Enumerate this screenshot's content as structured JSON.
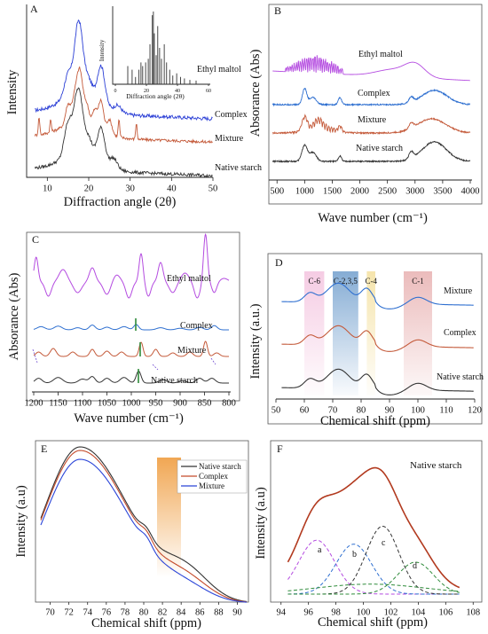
{
  "chart_data": [
    {
      "panel": "A",
      "type": "line",
      "xlabel": "Diffraction angle (2θ)",
      "ylabel": "Intensity",
      "xlim": [
        5,
        50
      ],
      "xticks": [
        10,
        20,
        30,
        40,
        50
      ],
      "series": [
        {
          "name": "Complex",
          "color": "#2b3fd6",
          "peaks": [
            [
              15,
              0.5
            ],
            [
              17.2,
              0.95
            ],
            [
              18,
              0.85
            ],
            [
              20,
              0.35
            ],
            [
              23,
              0.85
            ],
            [
              27,
              0.15
            ]
          ]
        },
        {
          "name": "Mixture",
          "color": "#c45a3a",
          "peaks": [
            [
              8,
              0.5
            ],
            [
              10.8,
              0.35
            ],
            [
              15,
              0.55
            ],
            [
              16.5,
              0.6
            ],
            [
              17.5,
              0.9
            ],
            [
              18.2,
              0.8
            ],
            [
              19.5,
              0.5
            ],
            [
              21.5,
              0.45
            ],
            [
              23,
              0.8
            ],
            [
              25,
              0.4
            ],
            [
              27.3,
              0.5
            ],
            [
              31.5,
              0.45
            ]
          ]
        },
        {
          "name": "Native starch",
          "color": "#333333",
          "peaks": [
            [
              15,
              0.8
            ],
            [
              17,
              0.95
            ],
            [
              18,
              0.9
            ],
            [
              20,
              0.4
            ],
            [
              23,
              0.85
            ],
            [
              26,
              0.25
            ]
          ]
        }
      ],
      "inset": {
        "series": "Ethyl maltol",
        "ylabel": "Intensity",
        "xlabel": "Diffraction angle (2θ)",
        "xlim": [
          0,
          60
        ],
        "xticks": [
          0,
          20,
          40,
          60
        ],
        "sticks": [
          [
            8,
            0.25
          ],
          [
            10.8,
            0.2
          ],
          [
            13,
            0.1
          ],
          [
            15.2,
            0.2
          ],
          [
            16.5,
            0.3
          ],
          [
            17.6,
            0.25
          ],
          [
            19.5,
            0.3
          ],
          [
            21.2,
            0.35
          ],
          [
            22.3,
            0.55
          ],
          [
            23.8,
            0.95
          ],
          [
            24.5,
            1.0
          ],
          [
            25.1,
            0.7
          ],
          [
            26.3,
            0.4
          ],
          [
            27.3,
            0.8
          ],
          [
            28.5,
            0.5
          ],
          [
            29.7,
            0.35
          ],
          [
            31.5,
            0.55
          ],
          [
            33,
            0.3
          ],
          [
            35,
            0.2
          ],
          [
            37,
            0.12
          ],
          [
            39.5,
            0.15
          ],
          [
            42,
            0.1
          ],
          [
            44.5,
            0.08
          ],
          [
            48,
            0.06
          ],
          [
            52,
            0.05
          ]
        ]
      }
    },
    {
      "panel": "B",
      "type": "line",
      "xlabel": "Wave number (cm⁻¹)",
      "ylabel": "Absorance (Abs)",
      "xlim": [
        400,
        4000
      ],
      "xticks": [
        500,
        1000,
        1500,
        2000,
        2500,
        3000,
        3500,
        4000
      ],
      "series": [
        {
          "name": "Ethyl maltol",
          "color": "#b44be0"
        },
        {
          "name": "Complex",
          "color": "#2e6fd0"
        },
        {
          "name": "Mixture",
          "color": "#c45a3a"
        },
        {
          "name": "Native starch",
          "color": "#333333"
        }
      ]
    },
    {
      "panel": "C",
      "type": "line",
      "xlabel": "Wave number (cm⁻¹)",
      "ylabel": "Absorance (Abs)",
      "xlim": [
        1200,
        800
      ],
      "xticks": [
        1200,
        1150,
        1100,
        1050,
        1000,
        950,
        900,
        850,
        800
      ],
      "series": [
        {
          "name": "Ethyl maltol",
          "color": "#b44be0"
        },
        {
          "name": "Complex",
          "color": "#2e6fd0"
        },
        {
          "name": "Mixture",
          "color": "#c45a3a"
        },
        {
          "name": "Native starch",
          "color": "#333333"
        }
      ]
    },
    {
      "panel": "D",
      "type": "line",
      "xlabel": "Chemical shift (ppm)",
      "ylabel": "Intensity (a.u.)",
      "xlim": [
        50,
        120
      ],
      "xticks": [
        50,
        60,
        70,
        80,
        90,
        100,
        110,
        120
      ],
      "regions": [
        {
          "label": "C-6",
          "from": 60,
          "to": 67,
          "color": "#f4c6e0"
        },
        {
          "label": "C-2,3,5",
          "from": 70,
          "to": 79,
          "color": "#8fb3d6"
        },
        {
          "label": "C-4",
          "from": 82,
          "to": 85,
          "color": "#f5e3a8"
        },
        {
          "label": "C-1",
          "from": 95,
          "to": 105,
          "color": "#eab8b8"
        }
      ],
      "series": [
        {
          "name": "Mixture",
          "color": "#2e6fd0"
        },
        {
          "name": "Complex",
          "color": "#c45a3a"
        },
        {
          "name": "Native starch",
          "color": "#333333"
        }
      ]
    },
    {
      "panel": "E",
      "type": "line",
      "xlabel": "Chemical shift (ppm)",
      "ylabel": "Intensity (a.u)",
      "xlim": [
        69,
        91
      ],
      "xticks": [
        70,
        72,
        74,
        76,
        78,
        80,
        82,
        84,
        86,
        88,
        90
      ],
      "legend": "top-right",
      "series": [
        {
          "name": "Native starch",
          "color": "#333333"
        },
        {
          "name": "Complex",
          "color": "#c44a2a"
        },
        {
          "name": "Mixture",
          "color": "#2b45d8"
        }
      ]
    },
    {
      "panel": "F",
      "type": "line",
      "title": "Native starch",
      "xlabel": "Chemical shift (ppm)",
      "ylabel": "Intensity (a.u)",
      "xlim": [
        93.5,
        108.5
      ],
      "xticks": [
        94,
        96,
        98,
        100,
        102,
        104,
        106,
        108
      ],
      "series": [
        {
          "name": "",
          "color": "#b23a1f"
        },
        {
          "name": "a",
          "center": 96.6,
          "color": "#b44be0"
        },
        {
          "name": "b",
          "center": 99.3,
          "color": "#2e6fd0"
        },
        {
          "name": "c",
          "center": 101.4,
          "color": "#333333"
        },
        {
          "name": "d",
          "center": 103.8,
          "color": "#2e8b3a"
        },
        {
          "name": "",
          "center": 100.5,
          "color": "#2e8b3a"
        }
      ]
    }
  ],
  "labels": {
    "A": "A",
    "B": "B",
    "C": "C",
    "D": "D",
    "E": "E",
    "F": "F",
    "a_x": "Diffraction angle (2θ)",
    "a_y": "Intensity",
    "a_complex": "Complex",
    "a_mixture": "Mixture",
    "a_native": "Native starch",
    "a_inset_y": "Intensity",
    "a_inset_x": "Diffraction angle (2θ)",
    "a_inset_name": "Ethyl maltol",
    "b_x": "Wave number (cm⁻¹)",
    "b_y": "Absorance (Abs)",
    "b_em": "Ethyl maltol",
    "b_complex": "Complex",
    "b_mixture": "Mixture",
    "b_native": "Native starch",
    "c_x": "Wave number (cm⁻¹)",
    "c_y": "Absorance (Abs)",
    "c_em": "Ethyl maltol",
    "c_complex": "Complex",
    "c_mixture": "Mixture",
    "c_native": "Native starch",
    "d_x": "Chemical shift (ppm)",
    "d_y": "Intensity (a.u.)",
    "d_mixture": "Mixture",
    "d_complex": "Complex",
    "d_native": "Native starch",
    "d_c6": "C-6",
    "d_c235": "C-2,3,5",
    "d_c4": "C-4",
    "d_c1": "C-1",
    "e_x": "Chemical shift (ppm)",
    "e_y": "Intensity (a.u)",
    "e_native": "Native starch",
    "e_complex": "Complex",
    "e_mixture": "Mixture",
    "f_x": "Chemical shift (ppm)",
    "f_y": "Intensity (a.u)",
    "f_title": "Native starch",
    "f_a": "a",
    "f_b": "b",
    "f_c": "c",
    "f_d": "d"
  }
}
